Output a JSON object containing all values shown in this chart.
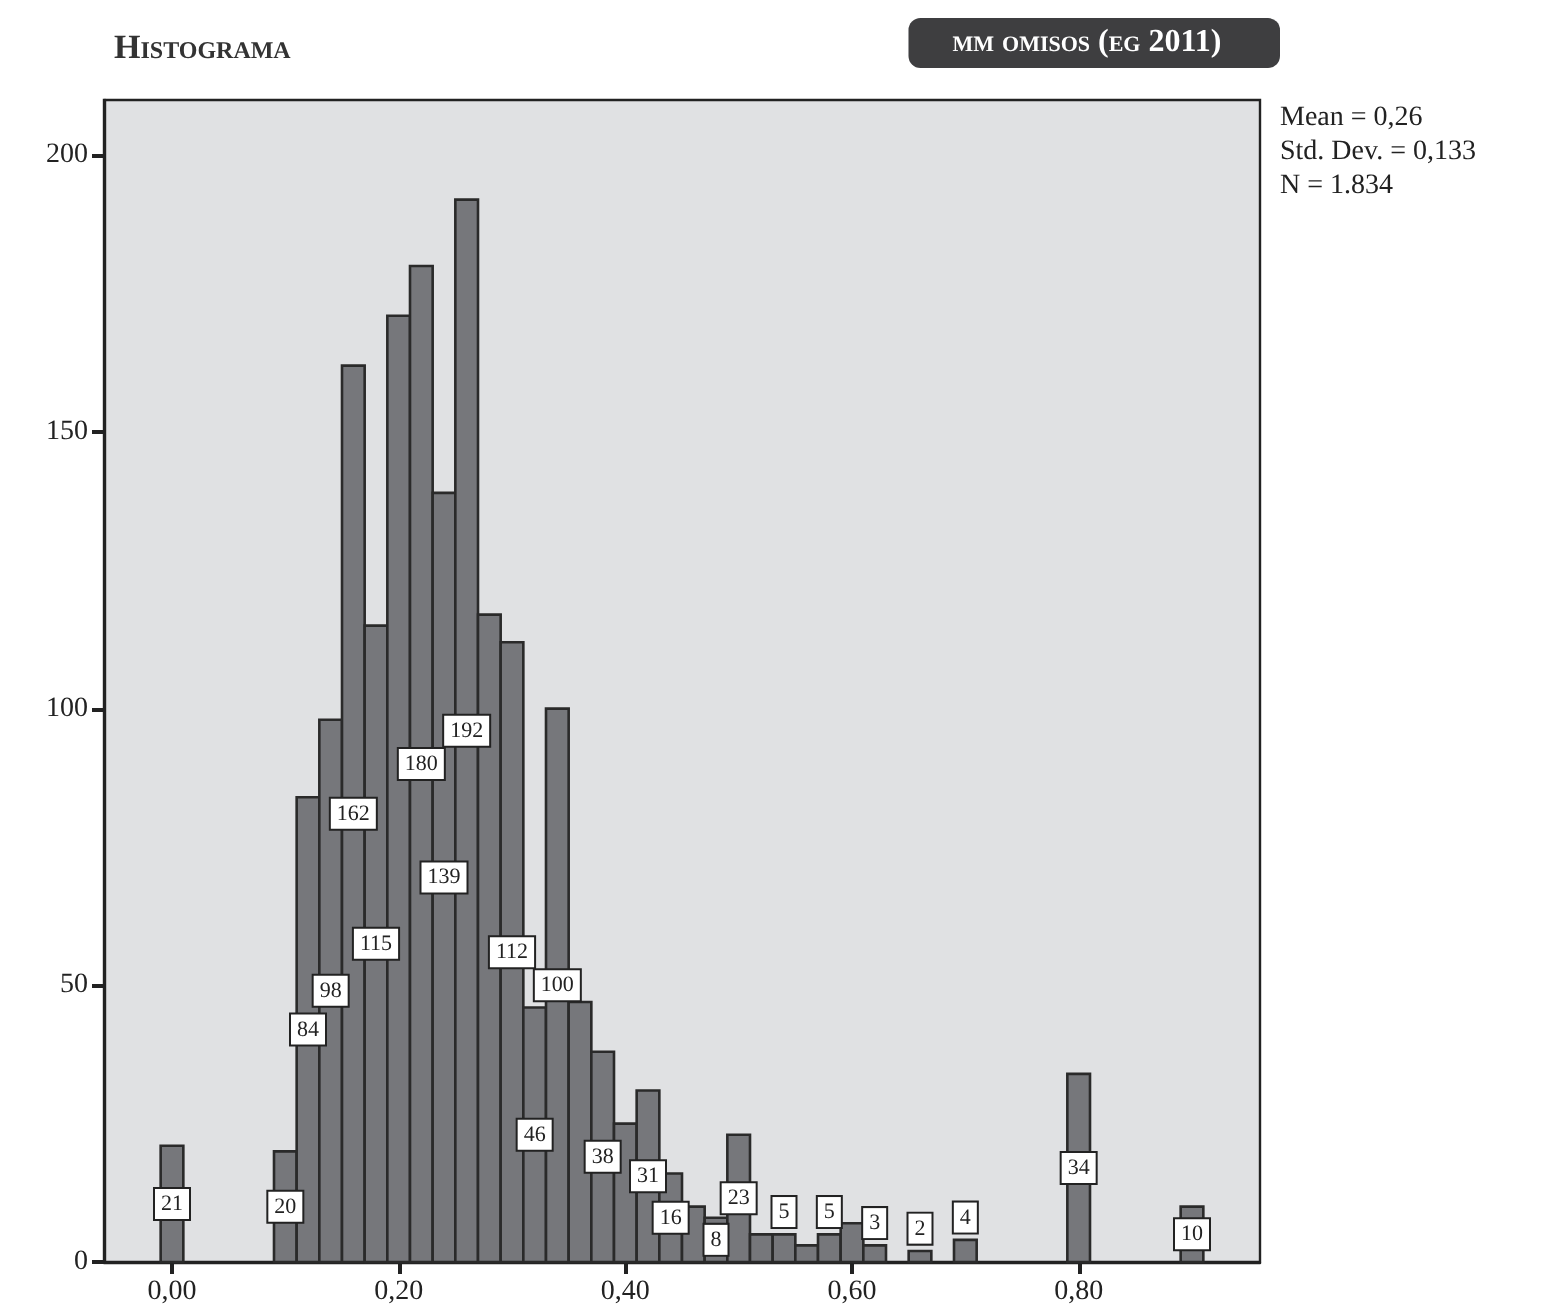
{
  "chart_data": {
    "type": "histogram",
    "title": "Histograma",
    "subtitle": "mm omisos (eg 2011)",
    "annotations": [
      "Mean = 0,26",
      "Std. Dev. = 0,133",
      "N = 1.834"
    ],
    "bins": [
      -0.01,
      0.01,
      0.03,
      0.05,
      0.07,
      0.09,
      0.11,
      0.13,
      0.15,
      0.17,
      0.19,
      0.21,
      0.23,
      0.25,
      0.27,
      0.29,
      0.31,
      0.33,
      0.35,
      0.37,
      0.39,
      0.41,
      0.43,
      0.45,
      0.47,
      0.49,
      0.51,
      0.53,
      0.55,
      0.57,
      0.59,
      0.61,
      0.63,
      0.65,
      0.67,
      0.69,
      0.71,
      0.73,
      0.75,
      0.77,
      0.79,
      0.81,
      0.83,
      0.85,
      0.87,
      0.89,
      0.91
    ],
    "values": [
      21,
      0,
      0,
      0,
      0,
      20,
      84,
      98,
      162,
      115,
      171,
      180,
      139,
      192,
      117,
      112,
      46,
      100,
      47,
      38,
      25,
      31,
      16,
      10,
      8,
      23,
      5,
      5,
      3,
      5,
      7,
      3,
      0,
      2,
      0,
      4,
      0,
      0,
      0,
      0,
      34,
      0,
      0,
      0,
      0,
      10
    ],
    "value_labels": [
      "21",
      null,
      null,
      null,
      null,
      "20",
      "84",
      "98",
      "162",
      "115",
      null,
      "180",
      "139",
      "192",
      null,
      "112",
      "46",
      "100",
      null,
      "38",
      null,
      "31",
      "16",
      null,
      "8",
      "23",
      null,
      "5",
      null,
      "5",
      null,
      "3",
      null,
      "2",
      null,
      "4",
      null,
      null,
      null,
      null,
      "34",
      null,
      null,
      null,
      null,
      "10"
    ],
    "color": "#76777b",
    "xlim": [
      -0.06,
      0.96
    ],
    "xticks": [
      {
        "value": 0,
        "label": "0,00"
      },
      {
        "value": 0.2,
        "label": "0,20"
      },
      {
        "value": 0.4,
        "label": "0,40"
      },
      {
        "value": 0.6,
        "label": "0,60"
      },
      {
        "value": 0.8,
        "label": "0,80"
      }
    ],
    "ylim": [
      0,
      210
    ],
    "yticks": [
      0,
      50,
      100,
      150,
      200
    ],
    "grid": false
  }
}
